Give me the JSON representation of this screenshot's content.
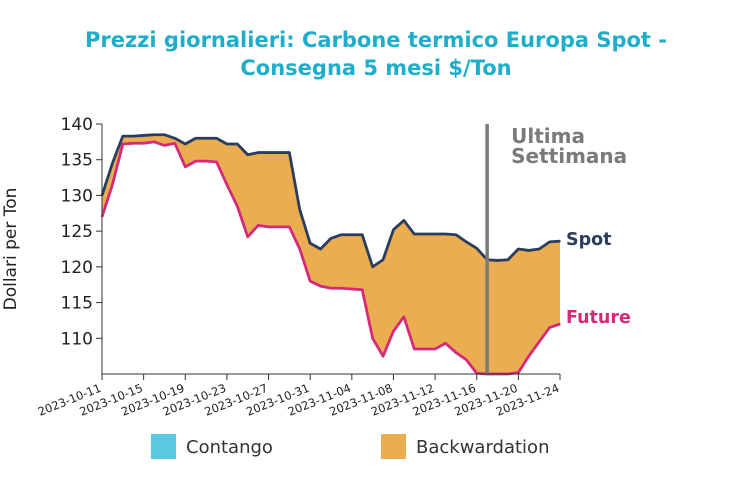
{
  "chart_data": {
    "type": "area",
    "title_line1": "Prezzi giornalieri: Carbone termico Europa Spot -",
    "title_line2": "Consegna 5 mesi $/Ton",
    "ylabel": "Dollari per Ton",
    "xlabel": "",
    "ylim": [
      105,
      140
    ],
    "yticks": [
      110,
      115,
      120,
      125,
      130,
      135,
      140
    ],
    "x_start": "2023-10-11",
    "x_end": "2023-11-24",
    "xticks": [
      "2023-10-11",
      "2023-10-15",
      "2023-10-19",
      "2023-10-23",
      "2023-10-27",
      "2023-10-31",
      "2023-11-04",
      "2023-11-08",
      "2023-11-12",
      "2023-11-16",
      "2023-11-20",
      "2023-11-24"
    ],
    "x": [
      "2023-10-11",
      "2023-10-12",
      "2023-10-13",
      "2023-10-14",
      "2023-10-15",
      "2023-10-16",
      "2023-10-17",
      "2023-10-18",
      "2023-10-19",
      "2023-10-20",
      "2023-10-21",
      "2023-10-22",
      "2023-10-23",
      "2023-10-24",
      "2023-10-25",
      "2023-10-26",
      "2023-10-27",
      "2023-10-28",
      "2023-10-29",
      "2023-10-30",
      "2023-10-31",
      "2023-11-01",
      "2023-11-02",
      "2023-11-03",
      "2023-11-04",
      "2023-11-05",
      "2023-11-06",
      "2023-11-07",
      "2023-11-08",
      "2023-11-09",
      "2023-11-10",
      "2023-11-11",
      "2023-11-12",
      "2023-11-13",
      "2023-11-14",
      "2023-11-15",
      "2023-11-16",
      "2023-11-17",
      "2023-11-18",
      "2023-11-19",
      "2023-11-20",
      "2023-11-21",
      "2023-11-22",
      "2023-11-23",
      "2023-11-24"
    ],
    "series": [
      {
        "name": "Spot",
        "color": "#2b3d5e",
        "values": [
          130.0,
          134.5,
          138.3,
          138.3,
          138.4,
          138.5,
          138.5,
          138.0,
          137.2,
          138.0,
          138.0,
          138.0,
          137.2,
          137.2,
          135.7,
          136.0,
          136.0,
          136.0,
          136.0,
          128.0,
          123.3,
          122.5,
          124.0,
          124.5,
          124.5,
          124.5,
          120.0,
          121.0,
          125.2,
          126.5,
          124.6,
          124.6,
          124.6,
          124.6,
          124.5,
          123.5,
          122.6,
          121.0,
          120.9,
          121.0,
          122.5,
          122.3,
          122.5,
          123.5,
          123.6
        ]
      },
      {
        "name": "Future",
        "color": "#d62a79",
        "values": [
          127.0,
          131.5,
          137.2,
          137.3,
          137.3,
          137.5,
          137.0,
          137.3,
          134.0,
          134.8,
          134.8,
          134.7,
          131.5,
          128.5,
          124.2,
          125.8,
          125.6,
          125.6,
          125.6,
          122.5,
          118.0,
          117.3,
          117.0,
          117.0,
          116.9,
          116.8,
          110.0,
          107.5,
          111.0,
          113.0,
          108.5,
          108.5,
          108.5,
          109.3,
          108.0,
          107.0,
          105.1,
          105.0,
          105.0,
          105.0,
          105.2,
          107.5,
          109.5,
          111.5,
          112.0
        ]
      }
    ],
    "fill_colors": {
      "Contango": "#5ac8e0",
      "Backwardation": "#eaad4f"
    },
    "legend": [
      "Contango",
      "Backwardation"
    ],
    "legend_position": "bottom",
    "end_labels": {
      "spot": "Spot",
      "future": "Future"
    },
    "annotation": {
      "text_line1": "Ultima",
      "text_line2": "Settimana",
      "date": "2023-11-17",
      "color": "#7a7a7a"
    },
    "grid": false
  }
}
